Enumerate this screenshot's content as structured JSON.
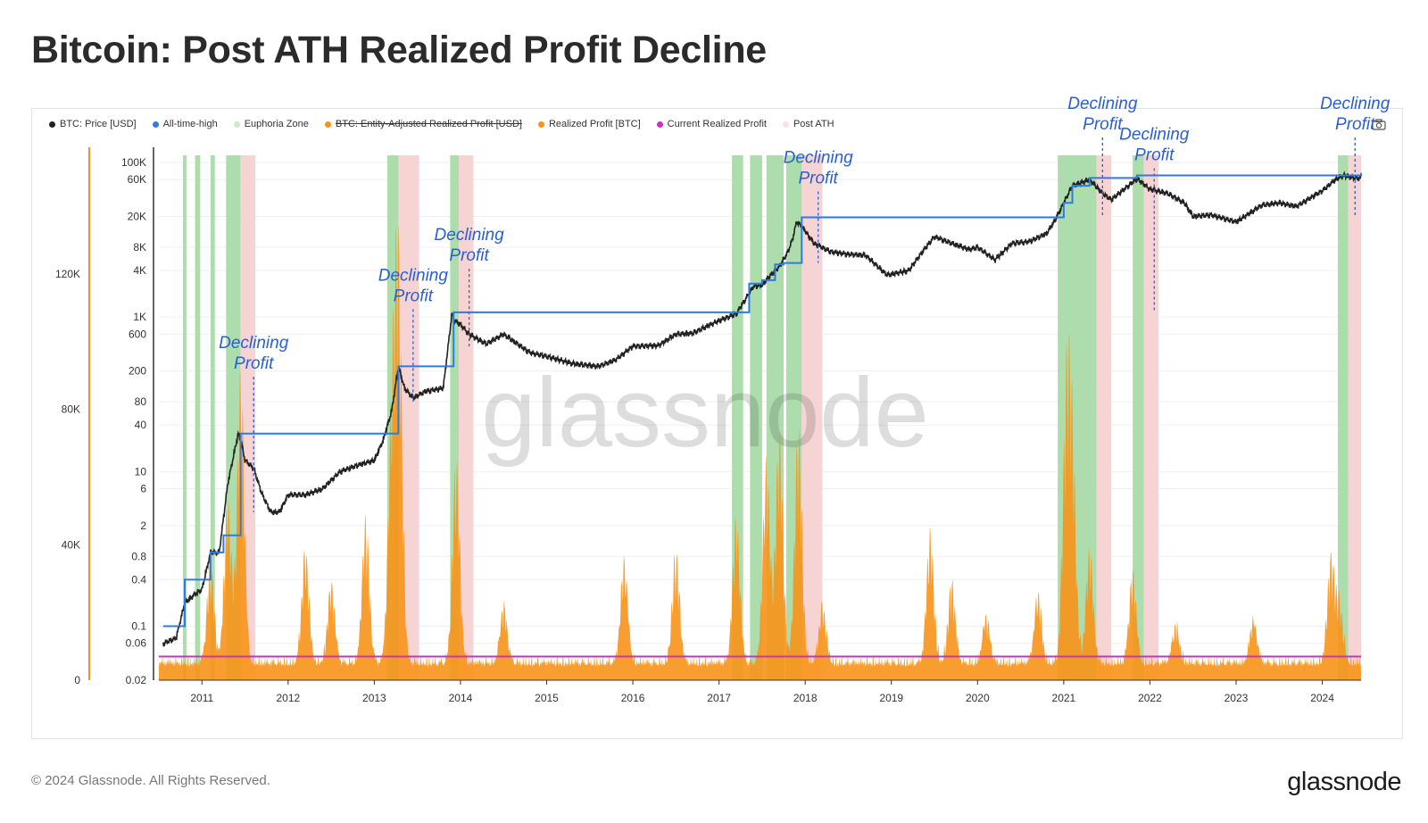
{
  "title": "Bitcoin: Post ATH Realized Profit Decline",
  "footer": "© 2024 Glassnode. All Rights Reserved.",
  "brand": "glassnode",
  "watermark": "glassnode",
  "camera_icon": "camera-icon",
  "colors": {
    "price": "#222222",
    "ath": "#2f7be0",
    "euphoria": "#a9dba9",
    "post_ath": "#f7d2d2",
    "realized_profit": "#f7931a",
    "current_profit": "#c832c8",
    "annotation": "#2a5fd0"
  },
  "legend": [
    {
      "label": "BTC: Price [USD]",
      "color": "#222222",
      "strike": false
    },
    {
      "label": "All-time-high",
      "color": "#2f7be0",
      "strike": false
    },
    {
      "label": "Euphoria Zone",
      "color": "#c9ecc9",
      "strike": false
    },
    {
      "label": "BTC: Entity-Adjusted Realized Profit [USD]",
      "color": "#f7931a",
      "strike": true
    },
    {
      "label": "Realized Profit [BTC]",
      "color": "#f7931a",
      "strike": false
    },
    {
      "label": "Current Realized Profit",
      "color": "#c832c8",
      "strike": false
    },
    {
      "label": "Post ATH",
      "color": "#fbe3e3",
      "strike": false
    }
  ],
  "chart_data": {
    "type": "area",
    "title": "Bitcoin: Post ATH Realized Profit Decline",
    "x_ticks": [
      "2011",
      "2012",
      "2013",
      "2014",
      "2015",
      "2016",
      "2017",
      "2018",
      "2019",
      "2020",
      "2021",
      "2022",
      "2023",
      "2024"
    ],
    "y_left_ticks": [
      "0",
      "40K",
      "80K",
      "120K"
    ],
    "y_left_values": [
      0,
      40000,
      80000,
      120000
    ],
    "y_right_ticks": [
      "100K",
      "60K",
      "20K",
      "8K",
      "4K",
      "1K",
      "600",
      "200",
      "80",
      "40",
      "10",
      "6",
      "2",
      "0.8",
      "0.4",
      "0.1",
      "0.06",
      "0.02"
    ],
    "y_right_values": [
      100000,
      60000,
      20000,
      8000,
      4000,
      1000,
      600,
      200,
      80,
      40,
      10,
      6,
      2,
      0.8,
      0.4,
      0.1,
      0.06,
      0.02
    ],
    "y_right_scale": "log",
    "x_range": [
      2010.5,
      2024.45
    ],
    "y_left_range": [
      0,
      155000
    ],
    "y_right_range": [
      0.02,
      100000
    ],
    "price_series": {
      "name": "BTC: Price [USD]",
      "x": [
        2010.55,
        2010.7,
        2010.8,
        2010.9,
        2011.0,
        2011.1,
        2011.2,
        2011.3,
        2011.42,
        2011.45,
        2011.5,
        2011.6,
        2011.7,
        2011.8,
        2011.9,
        2012.0,
        2012.2,
        2012.4,
        2012.6,
        2012.8,
        2013.0,
        2013.1,
        2013.2,
        2013.28,
        2013.35,
        2013.45,
        2013.6,
        2013.8,
        2013.9,
        2013.93,
        2014.0,
        2014.1,
        2014.3,
        2014.5,
        2014.8,
        2015.0,
        2015.3,
        2015.6,
        2015.8,
        2016.0,
        2016.3,
        2016.5,
        2016.7,
        2016.9,
        2017.0,
        2017.2,
        2017.4,
        2017.5,
        2017.6,
        2017.7,
        2017.8,
        2017.85,
        2017.9,
        2017.96,
        2018.1,
        2018.3,
        2018.5,
        2018.7,
        2018.95,
        2019.2,
        2019.4,
        2019.5,
        2019.7,
        2019.9,
        2020.0,
        2020.2,
        2020.4,
        2020.6,
        2020.8,
        2020.9,
        2021.0,
        2021.1,
        2021.3,
        2021.45,
        2021.55,
        2021.7,
        2021.85,
        2022.0,
        2022.2,
        2022.4,
        2022.5,
        2022.7,
        2022.85,
        2023.0,
        2023.3,
        2023.5,
        2023.7,
        2023.9,
        2024.0,
        2024.15,
        2024.25,
        2024.35,
        2024.45
      ],
      "y": [
        0.06,
        0.07,
        0.2,
        0.25,
        0.3,
        0.9,
        0.9,
        7,
        31,
        25,
        14,
        11,
        5,
        3,
        3,
        5,
        5,
        6,
        10,
        12,
        14,
        25,
        60,
        230,
        120,
        90,
        110,
        120,
        1100,
        900,
        800,
        600,
        450,
        600,
        350,
        310,
        250,
        230,
        280,
        420,
        430,
        600,
        620,
        800,
        900,
        1100,
        2500,
        2600,
        3500,
        4500,
        7000,
        10000,
        17000,
        15000,
        9000,
        7000,
        6500,
        6300,
        3500,
        4000,
        8000,
        11000,
        9000,
        7500,
        8000,
        5500,
        9000,
        9500,
        12000,
        18000,
        30000,
        50000,
        60000,
        40000,
        33000,
        45000,
        62000,
        45000,
        40000,
        30000,
        20000,
        21000,
        19000,
        17000,
        28000,
        30000,
        27000,
        37000,
        43000,
        60000,
        68000,
        64000,
        62000
      ]
    },
    "ath_series": {
      "name": "All-time-high",
      "x": [
        2010.55,
        2010.75,
        2010.8,
        2010.95,
        2011.1,
        2011.25,
        2011.45,
        2013.15,
        2013.28,
        2013.55,
        2013.92,
        2017.1,
        2017.35,
        2017.5,
        2017.65,
        2017.75,
        2017.96,
        2020.9,
        2021.0,
        2021.1,
        2021.3,
        2021.85,
        2024.2,
        2024.45
      ],
      "y": [
        0.1,
        0.1,
        0.4,
        0.4,
        0.9,
        1.5,
        31,
        31,
        230,
        230,
        1150,
        1150,
        2700,
        3000,
        4800,
        5000,
        19500,
        19500,
        30000,
        50000,
        63000,
        68000,
        68000,
        73000
      ]
    },
    "realized_profit_series": {
      "name": "Realized Profit [BTC]",
      "peaks": [
        {
          "x": 2011.45,
          "y": 88000
        },
        {
          "x": 2011.3,
          "y": 50000
        },
        {
          "x": 2011.1,
          "y": 30000
        },
        {
          "x": 2012.2,
          "y": 35000
        },
        {
          "x": 2012.5,
          "y": 25000
        },
        {
          "x": 2012.9,
          "y": 45000
        },
        {
          "x": 2013.28,
          "y": 120000
        },
        {
          "x": 2013.2,
          "y": 70000
        },
        {
          "x": 2013.95,
          "y": 62000
        },
        {
          "x": 2014.5,
          "y": 18000
        },
        {
          "x": 2015.9,
          "y": 32000
        },
        {
          "x": 2016.5,
          "y": 34000
        },
        {
          "x": 2017.2,
          "y": 45000
        },
        {
          "x": 2017.55,
          "y": 62000
        },
        {
          "x": 2017.7,
          "y": 70000
        },
        {
          "x": 2017.92,
          "y": 72000
        },
        {
          "x": 2018.2,
          "y": 18000
        },
        {
          "x": 2019.45,
          "y": 40000
        },
        {
          "x": 2019.7,
          "y": 25000
        },
        {
          "x": 2020.1,
          "y": 15000
        },
        {
          "x": 2020.7,
          "y": 22000
        },
        {
          "x": 2021.03,
          "y": 78000
        },
        {
          "x": 2021.1,
          "y": 60000
        },
        {
          "x": 2021.3,
          "y": 35000
        },
        {
          "x": 2021.8,
          "y": 28000
        },
        {
          "x": 2022.3,
          "y": 12000
        },
        {
          "x": 2023.2,
          "y": 14000
        },
        {
          "x": 2024.1,
          "y": 32000
        },
        {
          "x": 2024.2,
          "y": 18000
        }
      ]
    },
    "current_realized_profit": {
      "name": "Current Realized Profit",
      "y": 7000
    },
    "euphoria_zones": [
      [
        2010.78,
        2010.82
      ],
      [
        2010.92,
        2010.98
      ],
      [
        2011.1,
        2011.15
      ],
      [
        2011.28,
        2011.45
      ],
      [
        2013.15,
        2013.28
      ],
      [
        2013.88,
        2013.98
      ],
      [
        2017.15,
        2017.28
      ],
      [
        2017.36,
        2017.5
      ],
      [
        2017.55,
        2017.75
      ],
      [
        2017.78,
        2017.96
      ],
      [
        2020.93,
        2021.38
      ],
      [
        2021.8,
        2021.93
      ],
      [
        2024.18,
        2024.3
      ]
    ],
    "post_ath_zones": [
      [
        2011.45,
        2011.62
      ],
      [
        2013.28,
        2013.52
      ],
      [
        2013.98,
        2014.15
      ],
      [
        2017.96,
        2018.2
      ],
      [
        2021.38,
        2021.55
      ],
      [
        2021.93,
        2022.1
      ],
      [
        2024.3,
        2024.45
      ]
    ],
    "annotations": [
      {
        "line1": "Declining",
        "line2": "Profit",
        "x": 2011.6,
        "y": 80,
        "price": 3
      },
      {
        "line1": "Declining",
        "line2": "Profit",
        "x": 2013.45,
        "y": 600,
        "price": 80
      },
      {
        "line1": "Declining",
        "line2": "Profit",
        "x": 2014.1,
        "y": 2000,
        "price": 400
      },
      {
        "line1": "Declining",
        "line2": "Profit",
        "x": 2018.15,
        "y": 20000,
        "price": 5000
      },
      {
        "line1": "Declining",
        "line2": "Profit",
        "x": 2021.45,
        "y": 100000,
        "price": 20000
      },
      {
        "line1": "Declining",
        "line2": "Profit",
        "x": 2022.05,
        "y": 40000,
        "price": 1200
      },
      {
        "line1": "Declining",
        "line2": "Profit",
        "x": 2024.38,
        "y": 100000,
        "price": 20000
      }
    ]
  }
}
